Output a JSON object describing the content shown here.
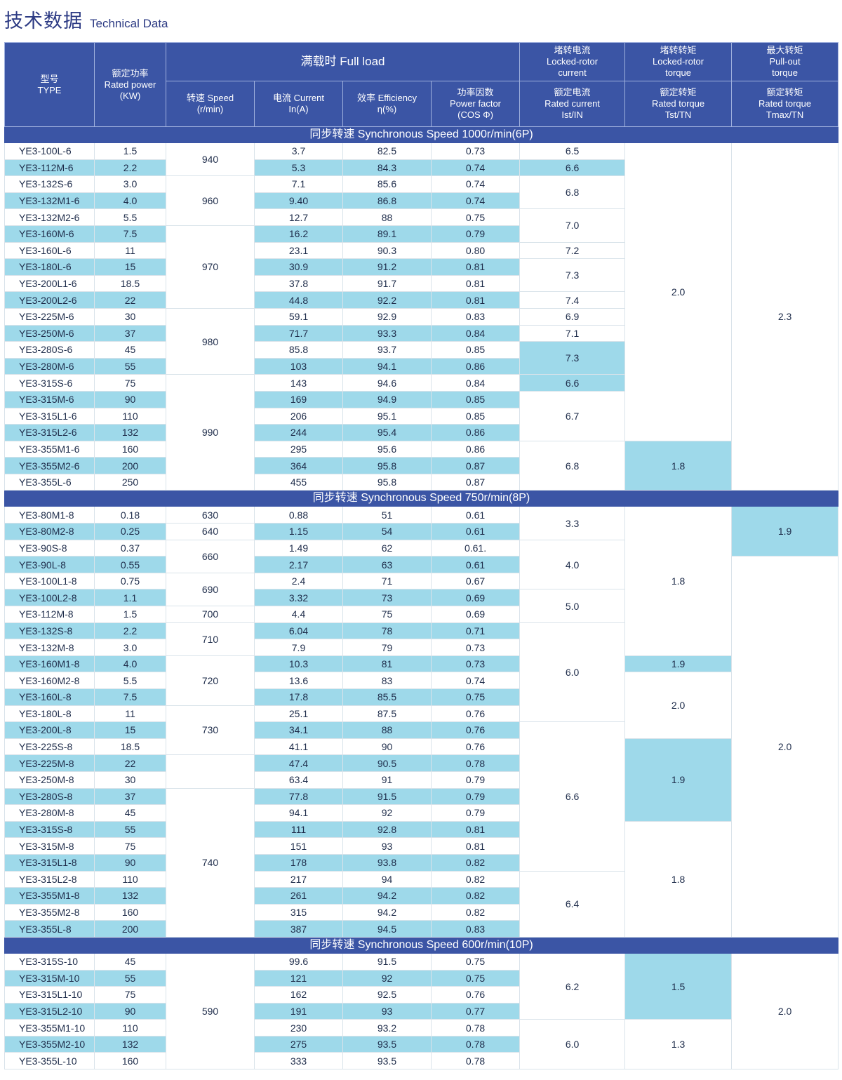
{
  "page": {
    "title_cn": "技术数据",
    "title_en": "Technical Data"
  },
  "header": {
    "type": {
      "cn": "型号",
      "en": "TYPE"
    },
    "power": {
      "cn": "额定功率",
      "en1": "Rated power",
      "en2": "(KW)"
    },
    "full_load": "满载时 Full load",
    "speed": {
      "l1": "转速 Speed",
      "l2": "(r/min)"
    },
    "current": {
      "l1": "电流 Current",
      "l2": "In(A)"
    },
    "efficiency": {
      "l1": "效率 Efficiency",
      "l2": "η(%)"
    },
    "pf": {
      "l1": "功率因数",
      "l2": "Power factor",
      "l3": "(COS Φ)"
    },
    "locked_current": {
      "l1": "堵转电流",
      "l2": "Locked-rotor",
      "l3": "current",
      "s1": "额定电流",
      "s2": "Rated current",
      "s3": "Ist/IN"
    },
    "locked_torque": {
      "l1": "堵转转矩",
      "l2": "Locked-rotor",
      "l3": "torque",
      "s1": "额定转矩",
      "s2": "Rated torque",
      "s3": "Tst/TN"
    },
    "max_torque": {
      "l1": "最大转矩",
      "l2": "Pull-out",
      "l3": "torque",
      "s1": "额定转矩",
      "s2": "Rated torque",
      "s3": "Tmax/TN"
    }
  },
  "sections": [
    {
      "title": "同步转速 Synchronous Speed 1000r/min(6P)",
      "rows": [
        [
          "YE3-100L-6",
          "1.5",
          "3.7",
          "82.5",
          "0.73"
        ],
        [
          "YE3-112M-6",
          "2.2",
          "5.3",
          "84.3",
          "0.74"
        ],
        [
          "YE3-132S-6",
          "3.0",
          "7.1",
          "85.6",
          "0.74"
        ],
        [
          "YE3-132M1-6",
          "4.0",
          "9.40",
          "86.8",
          "0.74"
        ],
        [
          "YE3-132M2-6",
          "5.5",
          "12.7",
          "88",
          "0.75"
        ],
        [
          "YE3-160M-6",
          "7.5",
          "16.2",
          "89.1",
          "0.79"
        ],
        [
          "YE3-160L-6",
          "11",
          "23.1",
          "90.3",
          "0.80"
        ],
        [
          "YE3-180L-6",
          "15",
          "30.9",
          "91.2",
          "0.81"
        ],
        [
          "YE3-200L1-6",
          "18.5",
          "37.8",
          "91.7",
          "0.81"
        ],
        [
          "YE3-200L2-6",
          "22",
          "44.8",
          "92.2",
          "0.81"
        ],
        [
          "YE3-225M-6",
          "30",
          "59.1",
          "92.9",
          "0.83"
        ],
        [
          "YE3-250M-6",
          "37",
          "71.7",
          "93.3",
          "0.84"
        ],
        [
          "YE3-280S-6",
          "45",
          "85.8",
          "93.7",
          "0.85"
        ],
        [
          "YE3-280M-6",
          "55",
          "103",
          "94.1",
          "0.86"
        ],
        [
          "YE3-315S-6",
          "75",
          "143",
          "94.6",
          "0.84"
        ],
        [
          "YE3-315M-6",
          "90",
          "169",
          "94.9",
          "0.85"
        ],
        [
          "YE3-315L1-6",
          "110",
          "206",
          "95.1",
          "0.85"
        ],
        [
          "YE3-315L2-6",
          "132",
          "244",
          "95.4",
          "0.86"
        ],
        [
          "YE3-355M1-6",
          "160",
          "295",
          "95.6",
          "0.86"
        ],
        [
          "YE3-355M2-6",
          "200",
          "364",
          "95.8",
          "0.87"
        ],
        [
          "YE3-355L-6",
          "250",
          "455",
          "95.8",
          "0.87"
        ]
      ],
      "speed": [
        [
          "940",
          2
        ],
        [
          "960",
          3
        ],
        [
          "970",
          5
        ],
        [
          "980",
          4
        ],
        [
          "990",
          7
        ]
      ],
      "ist": [
        [
          "6.5",
          1
        ],
        [
          "6.6",
          1
        ],
        [
          "6.8",
          2
        ],
        [
          "7.0",
          2
        ],
        [
          "7.2",
          1
        ],
        [
          "7.3",
          2
        ],
        [
          "7.4",
          1
        ],
        [
          "6.9",
          1
        ],
        [
          "7.1",
          1
        ],
        [
          "7.3",
          2
        ],
        [
          "6.6",
          1
        ],
        [
          "6.7",
          3
        ],
        [
          "6.8",
          3
        ]
      ],
      "tst": [
        [
          "2.0",
          18
        ],
        [
          "1.8",
          3
        ]
      ],
      "tmax": [
        [
          "2.3",
          21
        ]
      ]
    },
    {
      "title": "同步转速 Synchronous Speed 750r/min(8P)",
      "rows": [
        [
          "YE3-80M1-8",
          "0.18",
          "0.88",
          "51",
          "0.61"
        ],
        [
          "YE3-80M2-8",
          "0.25",
          "1.15",
          "54",
          "0.61"
        ],
        [
          "YE3-90S-8",
          "0.37",
          "1.49",
          "62",
          "0.61."
        ],
        [
          "YE3-90L-8",
          "0.55",
          "2.17",
          "63",
          "0.61"
        ],
        [
          "YE3-100L1-8",
          "0.75",
          "2.4",
          "71",
          "0.67"
        ],
        [
          "YE3-100L2-8",
          "1.1",
          "3.32",
          "73",
          "0.69"
        ],
        [
          "YE3-112M-8",
          "1.5",
          "4.4",
          "75",
          "0.69"
        ],
        [
          "YE3-132S-8",
          "2.2",
          "6.04",
          "78",
          "0.71"
        ],
        [
          "YE3-132M-8",
          "3.0",
          "7.9",
          "79",
          "0.73"
        ],
        [
          "YE3-160M1-8",
          "4.0",
          "10.3",
          "81",
          "0.73"
        ],
        [
          "YE3-160M2-8",
          "5.5",
          "13.6",
          "83",
          "0.74"
        ],
        [
          "YE3-160L-8",
          "7.5",
          "17.8",
          "85.5",
          "0.75"
        ],
        [
          "YE3-180L-8",
          "11",
          "25.1",
          "87.5",
          "0.76"
        ],
        [
          "YE3-200L-8",
          "15",
          "34.1",
          "88",
          "0.76"
        ],
        [
          "YE3-225S-8",
          "18.5",
          "41.1",
          "90",
          "0.76"
        ],
        [
          "YE3-225M-8",
          "22",
          "47.4",
          "90.5",
          "0.78"
        ],
        [
          "YE3-250M-8",
          "30",
          "63.4",
          "91",
          "0.79"
        ],
        [
          "YE3-280S-8",
          "37",
          "77.8",
          "91.5",
          "0.79"
        ],
        [
          "YE3-280M-8",
          "45",
          "94.1",
          "92",
          "0.79"
        ],
        [
          "YE3-315S-8",
          "55",
          "111",
          "92.8",
          "0.81"
        ],
        [
          "YE3-315M-8",
          "75",
          "151",
          "93",
          "0.81"
        ],
        [
          "YE3-315L1-8",
          "90",
          "178",
          "93.8",
          "0.82"
        ],
        [
          "YE3-315L2-8",
          "110",
          "217",
          "94",
          "0.82"
        ],
        [
          "YE3-355M1-8",
          "132",
          "261",
          "94.2",
          "0.82"
        ],
        [
          "YE3-355M2-8",
          "160",
          "315",
          "94.2",
          "0.82"
        ],
        [
          "YE3-355L-8",
          "200",
          "387",
          "94.5",
          "0.83"
        ]
      ],
      "speed": [
        [
          "630",
          1
        ],
        [
          "640",
          1
        ],
        [
          "660",
          2
        ],
        [
          "690",
          2
        ],
        [
          "700",
          1
        ],
        [
          "710",
          2
        ],
        [
          "720",
          3
        ],
        [
          "730",
          3
        ],
        [
          "",
          2
        ],
        [
          "740",
          9
        ]
      ],
      "ist": [
        [
          "3.3",
          2
        ],
        [
          "4.0",
          3
        ],
        [
          "5.0",
          2
        ],
        [
          "6.0",
          6
        ],
        [
          "6.6",
          9
        ],
        [
          "6.4",
          4
        ]
      ],
      "tst": [
        [
          "1.8",
          9
        ],
        [
          "1.9",
          1
        ],
        [
          "2.0",
          4
        ],
        [
          "1.9",
          5
        ],
        [
          "1.8",
          7
        ]
      ],
      "tmax": [
        [
          "1.9",
          3
        ],
        [
          "2.0",
          23
        ]
      ]
    },
    {
      "title": "同步转速 Synchronous Speed 600r/min(10P)",
      "rows": [
        [
          "YE3-315S-10",
          "45",
          "99.6",
          "91.5",
          "0.75"
        ],
        [
          "YE3-315M-10",
          "55",
          "121",
          "92",
          "0.75"
        ],
        [
          "YE3-315L1-10",
          "75",
          "162",
          "92.5",
          "0.76"
        ],
        [
          "YE3-315L2-10",
          "90",
          "191",
          "93",
          "0.77"
        ],
        [
          "YE3-355M1-10",
          "110",
          "230",
          "93.2",
          "0.78"
        ],
        [
          "YE3-355M2-10",
          "132",
          "275",
          "93.5",
          "0.78"
        ],
        [
          "YE3-355L-10",
          "160",
          "333",
          "93.5",
          "0.78"
        ]
      ],
      "speed": [
        [
          "590",
          7
        ]
      ],
      "ist": [
        [
          "6.2",
          4
        ],
        [
          "6.0",
          3
        ]
      ],
      "tst": [
        [
          "1.5",
          4
        ],
        [
          "1.3",
          3
        ]
      ],
      "tmax": [
        [
          "2.0",
          7
        ]
      ]
    }
  ],
  "blue_cells": {
    "s0": {
      "ist": [
        1,
        9,
        10
      ],
      "tst": [
        1
      ]
    },
    "s1": {
      "ist": [],
      "tst": [
        1,
        3
      ],
      "tmax": [
        0
      ]
    },
    "s2": {
      "tst": [
        0
      ]
    }
  }
}
